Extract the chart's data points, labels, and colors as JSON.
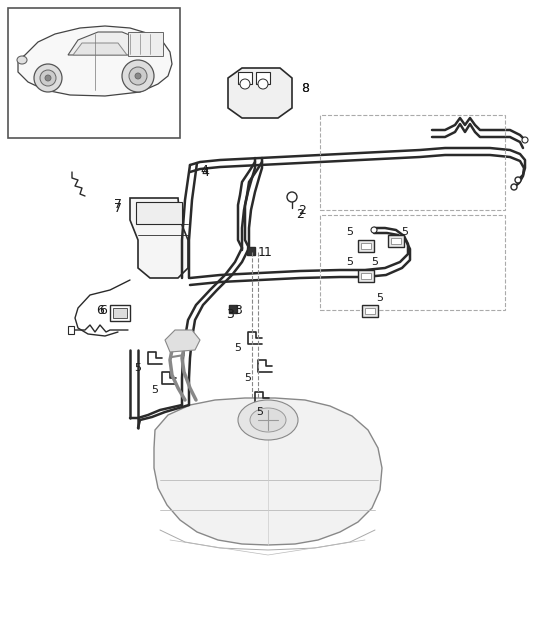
{
  "bg": "#ffffff",
  "lc": "#2a2a2a",
  "gc": "#999999",
  "fw": 5.45,
  "fh": 6.28,
  "dpi": 100
}
